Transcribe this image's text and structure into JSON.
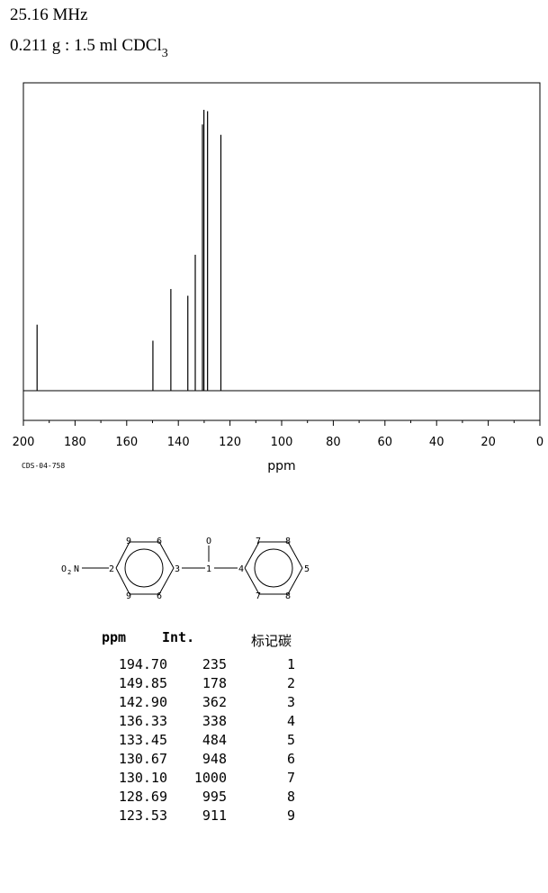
{
  "header": {
    "frequency": "25.16 MHz",
    "sample_main": "0.211 g : 1.5 ml CDCl",
    "sample_sub": "3"
  },
  "code": "CDS-04-758",
  "chart_data": {
    "type": "bar",
    "xlabel": "ppm",
    "ylabel": "",
    "xlim": [
      200,
      0
    ],
    "ylim": [
      0,
      1000
    ],
    "xticks": [
      "200",
      "180",
      "160",
      "140",
      "120",
      "100",
      "80",
      "60",
      "40",
      "20",
      "0"
    ],
    "peaks": [
      {
        "ppm": 194.7,
        "intensity": 235
      },
      {
        "ppm": 149.85,
        "intensity": 178
      },
      {
        "ppm": 142.9,
        "intensity": 362
      },
      {
        "ppm": 136.33,
        "intensity": 338
      },
      {
        "ppm": 133.45,
        "intensity": 484
      },
      {
        "ppm": 130.67,
        "intensity": 948
      },
      {
        "ppm": 130.1,
        "intensity": 1000
      },
      {
        "ppm": 128.69,
        "intensity": 995
      },
      {
        "ppm": 123.53,
        "intensity": 911
      }
    ]
  },
  "structure": {
    "substituent": "O",
    "substituent_sub": "2",
    "substituent_n": "N",
    "carbonyl_o": "O",
    "labels": {
      "c2": "2",
      "c9a": "9",
      "c6a": "6",
      "c3": "3",
      "c9b": "9",
      "c6b": "6",
      "c1": "1",
      "c4": "4",
      "c7a": "7",
      "c8a": "8",
      "c5": "5",
      "c7b": "7",
      "c8b": "8"
    }
  },
  "table": {
    "col_ppm": "ppm",
    "col_int": "Int.",
    "col_carbon": "标记碳",
    "rows": [
      {
        "ppm": "194.70",
        "int": "235",
        "label": "1"
      },
      {
        "ppm": "149.85",
        "int": "178",
        "label": "2"
      },
      {
        "ppm": "142.90",
        "int": "362",
        "label": "3"
      },
      {
        "ppm": "136.33",
        "int": "338",
        "label": "4"
      },
      {
        "ppm": "133.45",
        "int": "484",
        "label": "5"
      },
      {
        "ppm": "130.67",
        "int": "948",
        "label": "6"
      },
      {
        "ppm": "130.10",
        "int": "1000",
        "label": "7"
      },
      {
        "ppm": "128.69",
        "int": "995",
        "label": "8"
      },
      {
        "ppm": "123.53",
        "int": "911",
        "label": "9"
      }
    ]
  }
}
